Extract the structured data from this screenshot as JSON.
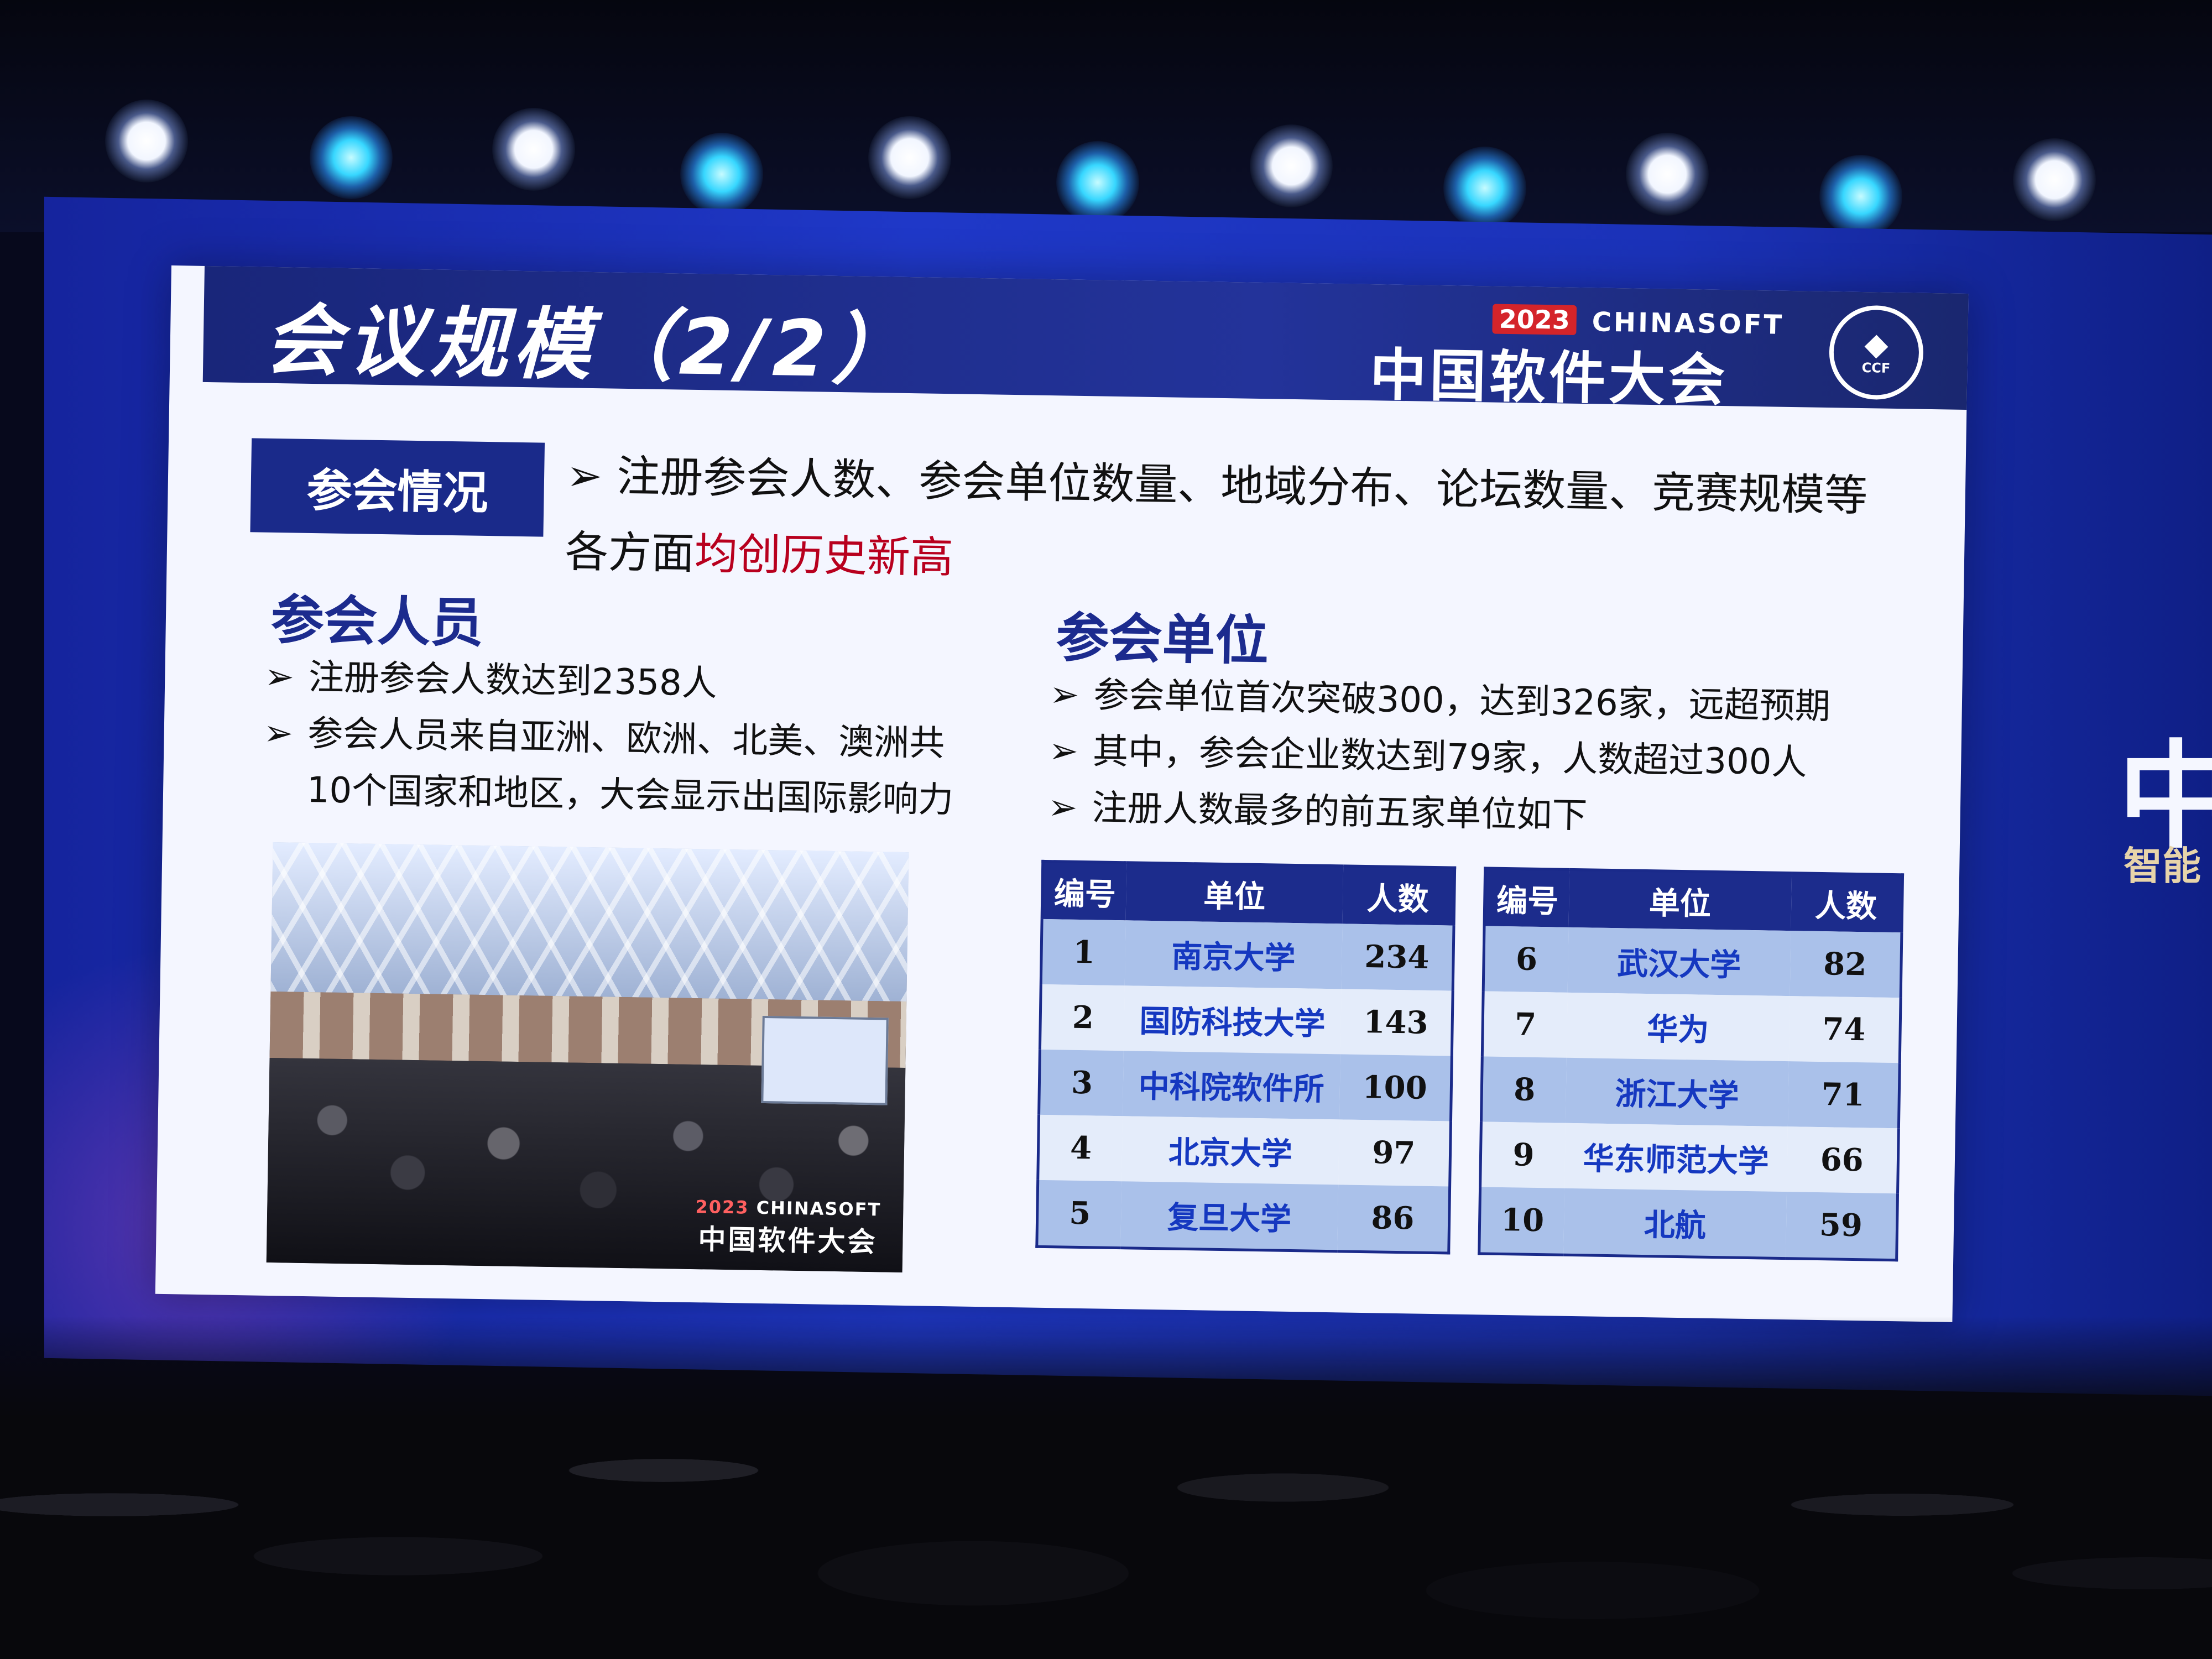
{
  "slide": {
    "title": "会议规模（2/2）",
    "brand": {
      "year": "2023",
      "en": "CHINASOFT",
      "cn": "中国软件大会",
      "logo_text": "CCF"
    },
    "section_label": "参会情况",
    "summary": {
      "text_before": "注册参会人数、参会单位数量、地域分布、论坛数量、竞赛规模等各方面",
      "text_highlight": "均创历史新高"
    },
    "attendees": {
      "heading": "参会人员",
      "bullets": [
        "注册参会人数达到2358人",
        "参会人员来自亚洲、欧洲、北美、澳洲共10个国家和地区，大会显示出国际影响力"
      ]
    },
    "units": {
      "heading": "参会单位",
      "bullets": [
        "参会单位首次突破300，达到326家，远超预期",
        "其中，参会企业数达到79家，人数超过300人",
        "注册人数最多的前五家单位如下"
      ]
    },
    "photo_brand": {
      "year": "2023",
      "en": "CHINASOFT",
      "cn": "中国软件大会"
    },
    "table_headers": {
      "no": "编号",
      "unit": "单位",
      "count": "人数"
    },
    "table_left": [
      {
        "no": "1",
        "unit": "南京大学",
        "count": "234"
      },
      {
        "no": "2",
        "unit": "国防科技大学",
        "count": "143"
      },
      {
        "no": "3",
        "unit": "中科院软件所",
        "count": "100"
      },
      {
        "no": "4",
        "unit": "北京大学",
        "count": "97"
      },
      {
        "no": "5",
        "unit": "复旦大学",
        "count": "86"
      }
    ],
    "table_right": [
      {
        "no": "6",
        "unit": "武汉大学",
        "count": "82"
      },
      {
        "no": "7",
        "unit": "华为",
        "count": "74"
      },
      {
        "no": "8",
        "unit": "浙江大学",
        "count": "71"
      },
      {
        "no": "9",
        "unit": "华东师范大学",
        "count": "66"
      },
      {
        "no": "10",
        "unit": "北航",
        "count": "59"
      }
    ]
  },
  "side_screen": {
    "brand_char": "中",
    "slogan": "智能"
  },
  "icons": {
    "bullet": "arrow-bullet-icon",
    "logo": "ccf-logo-icon"
  },
  "colors": {
    "header": "#1a2a8a",
    "highlight": "#b8001e",
    "unit_text": "#1538c0",
    "screen_blue": "#1f38c8"
  }
}
